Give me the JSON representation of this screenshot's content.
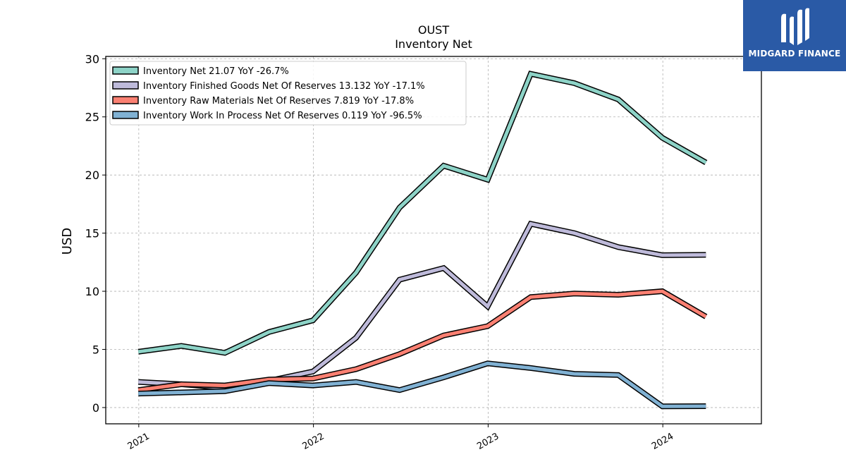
{
  "brand": {
    "name": "MIDGARD FINANCE",
    "bg_color": "#2a5aa6"
  },
  "chart_data": {
    "type": "line",
    "title": "OUST",
    "subtitle": "Inventory Net",
    "ylabel": "USD",
    "xlabel": "",
    "ylim": [
      -1.4,
      30.2
    ],
    "xlim": [
      "2020-10-24",
      "2024-07-25"
    ],
    "yticks": [
      0,
      5,
      10,
      15,
      20,
      25,
      30
    ],
    "xticks": [
      "2021",
      "2022",
      "2023",
      "2024"
    ],
    "grid": true,
    "legend_position": "top-left",
    "x": [
      "2020-12-31",
      "2021-03-31",
      "2021-06-30",
      "2021-09-30",
      "2021-12-31",
      "2022-03-31",
      "2022-06-30",
      "2022-09-30",
      "2022-12-31",
      "2023-03-31",
      "2023-06-30",
      "2023-09-30",
      "2023-12-31",
      "2024-03-31"
    ],
    "series": [
      {
        "name": "Inventory Net",
        "legend_label": "Inventory Net  21.07 YoY -26.7%",
        "color": "#8dd3c7",
        "values": [
          4.8,
          5.3,
          4.7,
          6.5,
          7.5,
          11.6,
          17.2,
          20.8,
          19.6,
          28.7,
          27.9,
          26.5,
          23.2,
          21.07
        ]
      },
      {
        "name": "Inventory Finished Goods Net Of Reserves",
        "legend_label": "Inventory Finished Goods Net Of Reserves  13.132 YoY -17.1%",
        "color": "#bebada",
        "values": [
          2.2,
          2.0,
          1.7,
          2.3,
          3.1,
          6.0,
          11.0,
          12.0,
          8.7,
          15.8,
          15.0,
          13.8,
          13.1,
          13.132
        ]
      },
      {
        "name": "Inventory Raw Materials Net Of Reserves",
        "legend_label": "Inventory Raw Materials Net Of Reserves  7.819 YoY -17.8%",
        "color": "#fb8072",
        "values": [
          1.5,
          2.0,
          1.9,
          2.4,
          2.5,
          3.3,
          4.6,
          6.2,
          7.0,
          9.5,
          9.8,
          9.7,
          10.0,
          7.819
        ]
      },
      {
        "name": "Inventory Work In Process Net Of Reserves",
        "legend_label": "Inventory Work In Process Net Of Reserves  0.119 YoY -96.5%",
        "color": "#80b1d3",
        "values": [
          1.2,
          1.3,
          1.4,
          2.1,
          1.9,
          2.2,
          1.5,
          2.6,
          3.8,
          3.4,
          2.9,
          2.8,
          0.1,
          0.119
        ]
      }
    ]
  }
}
